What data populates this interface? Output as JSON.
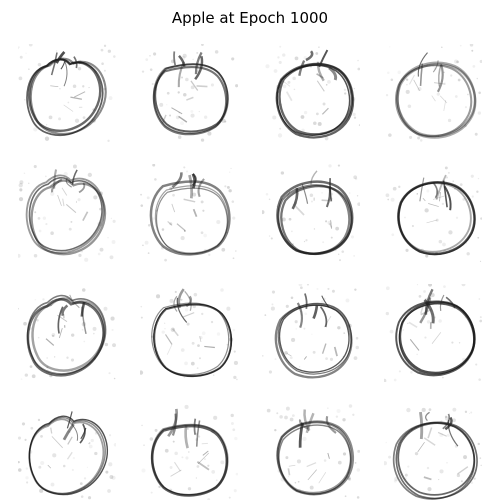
{
  "title": "Apple at Epoch 1000",
  "grid": {
    "rows": 4,
    "cols": 4,
    "samples": [
      {
        "id": 1
      },
      {
        "id": 2
      },
      {
        "id": 3
      },
      {
        "id": 4
      },
      {
        "id": 5
      },
      {
        "id": 6
      },
      {
        "id": 7
      },
      {
        "id": 8
      },
      {
        "id": 9
      },
      {
        "id": 10
      },
      {
        "id": 11
      },
      {
        "id": 12
      },
      {
        "id": 13
      },
      {
        "id": 14
      },
      {
        "id": 15
      },
      {
        "id": 16
      }
    ]
  }
}
